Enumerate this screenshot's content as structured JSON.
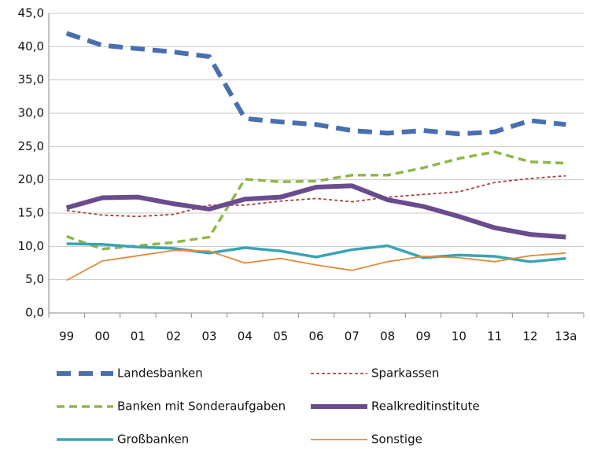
{
  "chart_data": {
    "type": "line",
    "categories": [
      "99",
      "00",
      "01",
      "02",
      "03",
      "04",
      "05",
      "06",
      "07",
      "08",
      "09",
      "10",
      "11",
      "12",
      "13a"
    ],
    "ylim": [
      0,
      45
    ],
    "yticks": [
      {
        "value": 0,
        "label": "0,0"
      },
      {
        "value": 5,
        "label": "5,0"
      },
      {
        "value": 10,
        "label": "10,0"
      },
      {
        "value": 15,
        "label": "15,0"
      },
      {
        "value": 20,
        "label": "20,0"
      },
      {
        "value": 25,
        "label": "25,0"
      },
      {
        "value": 30,
        "label": "30,0"
      },
      {
        "value": 35,
        "label": "35,0"
      },
      {
        "value": 40,
        "label": "40,0"
      },
      {
        "value": 45,
        "label": "45,0"
      }
    ],
    "grid": true,
    "series": [
      {
        "name": "Landesbanken",
        "color": "#4a6fb0",
        "dash": "long",
        "weight": "heavy",
        "values": [
          42.0,
          40.2,
          39.7,
          39.2,
          38.5,
          29.2,
          28.7,
          28.3,
          27.4,
          27.0,
          27.4,
          26.9,
          27.2,
          28.9,
          28.3
        ]
      },
      {
        "name": "Sparkassen",
        "color": "#a84442",
        "dash": "short",
        "weight": "light",
        "values": [
          15.4,
          14.7,
          14.5,
          14.8,
          16.2,
          16.2,
          16.8,
          17.2,
          16.7,
          17.4,
          17.8,
          18.2,
          19.6,
          20.2,
          20.6
        ]
      },
      {
        "name": "Banken mit Sonderaufgaben",
        "color": "#8db84a",
        "dash": "medium",
        "weight": "medium",
        "values": [
          11.5,
          9.6,
          10.1,
          10.6,
          11.4,
          20.1,
          19.7,
          19.8,
          20.7,
          20.7,
          21.8,
          23.2,
          24.2,
          22.7,
          22.5
        ]
      },
      {
        "name": "Realkreditinstitute",
        "color": "#6a4c8e",
        "dash": "none",
        "weight": "heavy",
        "values": [
          15.8,
          17.3,
          17.4,
          16.4,
          15.6,
          17.1,
          17.4,
          18.9,
          19.1,
          17.0,
          16.0,
          14.5,
          12.8,
          11.8,
          11.4
        ]
      },
      {
        "name": "Großbanken",
        "color": "#3aa3b5",
        "dash": "none",
        "weight": "medium",
        "values": [
          10.4,
          10.3,
          9.9,
          9.7,
          9.0,
          9.8,
          9.3,
          8.4,
          9.5,
          10.1,
          8.3,
          8.7,
          8.5,
          7.7,
          8.2
        ]
      },
      {
        "name": "Sonstige",
        "color": "#e38b3c",
        "dash": "none",
        "weight": "light",
        "values": [
          4.9,
          7.8,
          8.6,
          9.4,
          9.3,
          7.5,
          8.2,
          7.2,
          6.4,
          7.7,
          8.5,
          8.3,
          7.7,
          8.6,
          9.0
        ]
      }
    ]
  }
}
